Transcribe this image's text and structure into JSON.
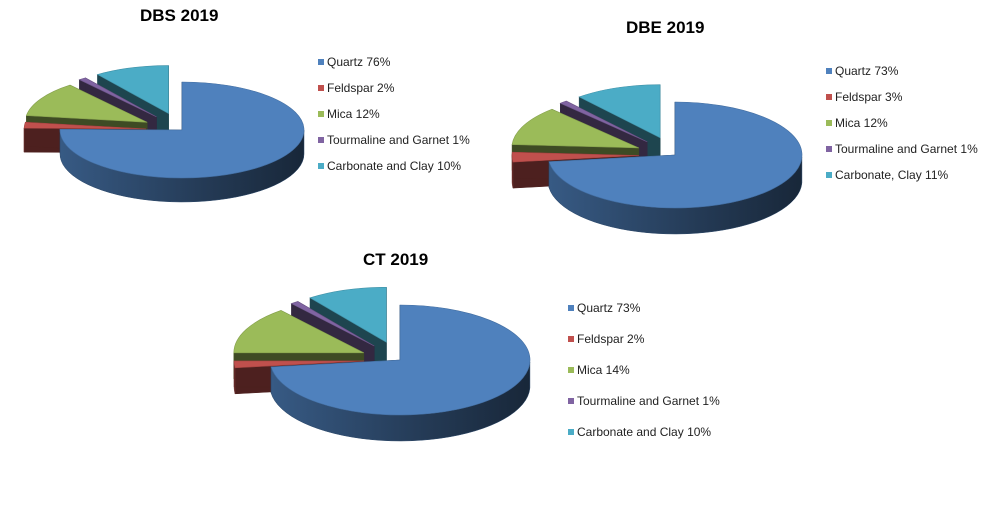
{
  "colors": {
    "quartz": "#4F81BD",
    "feldspar": "#C0504D",
    "mica": "#9BBB59",
    "tourmaline": "#8064A2",
    "carbonate": "#4BACC6"
  },
  "chart_data": [
    {
      "type": "pie",
      "title": "DBS 2019",
      "legend_position": "right",
      "categories": [
        "Quartz",
        "Feldspar",
        "Mica",
        "Tourmaline and Garnet",
        "Carbonate and Clay"
      ],
      "values": [
        76,
        2,
        12,
        1,
        10
      ],
      "legend_labels": [
        "Quartz 76%",
        "Feldspar 2%",
        "Mica 12%",
        "Tourmaline and Garnet 1%",
        "Carbonate and Clay 10%"
      ]
    },
    {
      "type": "pie",
      "title": "DBE 2019",
      "legend_position": "right",
      "categories": [
        "Quartz",
        "Feldspar",
        "Mica",
        "Tourmaline and Garnet",
        "Carbonate, Clay"
      ],
      "values": [
        73,
        3,
        12,
        1,
        11
      ],
      "legend_labels": [
        "Quartz 73%",
        "Feldspar 3%",
        "Mica 12%",
        "Tourmaline and Garnet 1%",
        "Carbonate, Clay 11%"
      ]
    },
    {
      "type": "pie",
      "title": "CT 2019",
      "legend_position": "right",
      "categories": [
        "Quartz",
        "Feldspar",
        "Mica",
        "Tourmaline and Garnet",
        "Carbonate and Clay"
      ],
      "values": [
        73,
        2,
        14,
        1,
        10
      ],
      "legend_labels": [
        "Quartz 73%",
        "Feldspar 2%",
        "Mica 14%",
        "Tourmaline and Garnet 1%",
        "Carbonate and Clay 10%"
      ]
    }
  ]
}
